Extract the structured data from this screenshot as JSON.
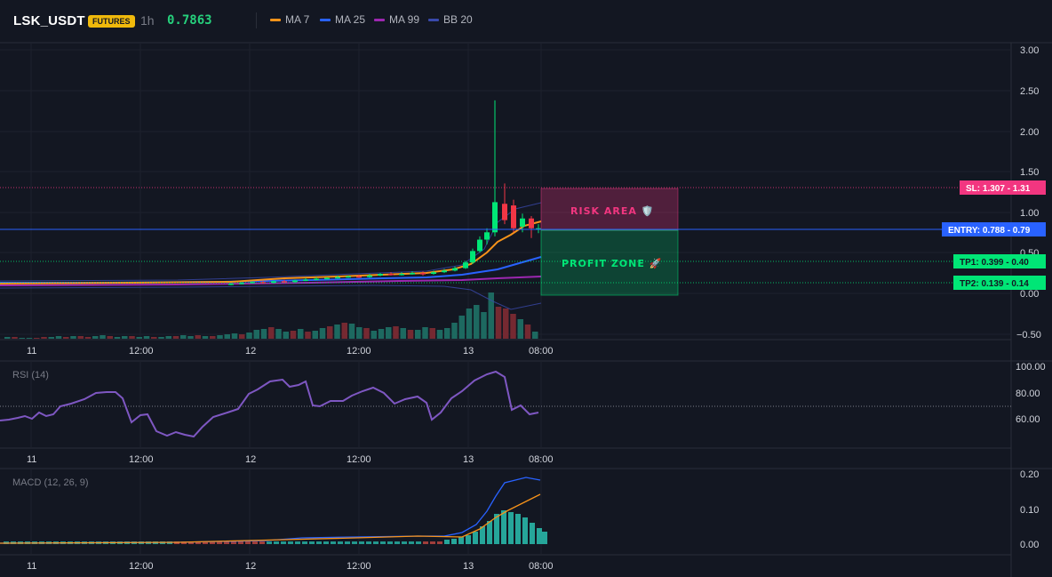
{
  "header": {
    "symbol": "LSK_USDT",
    "badge": "FUTURES",
    "timeframe": "1h",
    "price": "0.7863",
    "legend": [
      {
        "label": "MA 7",
        "color": "#f7931a"
      },
      {
        "label": "MA 25",
        "color": "#2962ff"
      },
      {
        "label": "MA 99",
        "color": "#9c27b0"
      },
      {
        "label": "BB 20",
        "color": "#3949ab"
      }
    ]
  },
  "main": {
    "price_axis": [
      "3.00",
      "2.50",
      "2.00",
      "1.50",
      "1.00",
      "0.50",
      "0.00",
      "−0.50"
    ],
    "time_axis": [
      "11",
      "12:00",
      "12",
      "12:00",
      "13",
      "08:00"
    ],
    "levels": {
      "sl_tag": "SL: 1.307 - 1.31",
      "entry_tag": "ENTRY: 0.788 - 0.79",
      "tp1_tag": "TP1: 0.399 - 0.40",
      "tp2_tag": "TP2: 0.139 - 0.14"
    },
    "risk_label": "RISK AREA 🛡️",
    "profit_label": "PROFIT ZONE 🚀",
    "colors": {
      "up": "#26a69a",
      "up_bright": "#00e676",
      "down": "#f23645",
      "risk": "#f23680",
      "profit": "#00e676",
      "entry": "#2962ff"
    }
  },
  "rsi": {
    "title": "RSI (14)",
    "axis": [
      "100.00",
      "80.00",
      "60.00"
    ],
    "time_axis": [
      "11",
      "12:00",
      "12",
      "12:00",
      "13",
      "08:00"
    ],
    "color": "#7e57c2"
  },
  "macd": {
    "title": "MACD (12, 26, 9)",
    "axis": [
      "0.20",
      "0.10",
      "0.00"
    ],
    "time_axis": [
      "11",
      "12:00",
      "12",
      "12:00",
      "13",
      "08:00"
    ],
    "macd_color": "#2962ff",
    "signal_color": "#f7931a",
    "hist_color": "#26a69a"
  }
}
